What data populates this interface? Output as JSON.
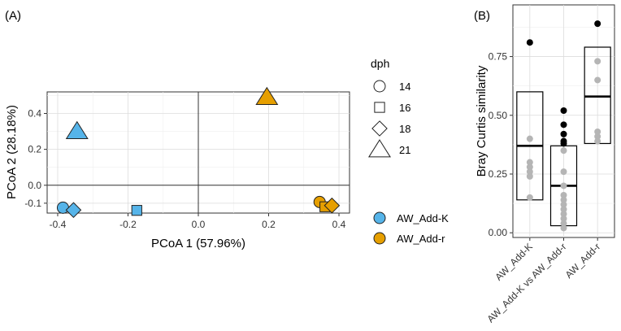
{
  "chart_data": [
    {
      "panel_label": "(A)",
      "type": "scatter",
      "xlabel": "PCoA 1 (57.96%)",
      "ylabel": "PCoA 2 (28.18%)",
      "xlim": [
        -0.43,
        0.43
      ],
      "ylim": [
        -0.155,
        0.52
      ],
      "x_ticks": [
        -0.4,
        -0.2,
        0.0,
        0.2,
        0.4
      ],
      "x_tick_labels": [
        "-0.4",
        "-0.2",
        "0.0",
        "0.2",
        "0.4"
      ],
      "y_ticks": [
        -0.1,
        0.0,
        0.2,
        0.4
      ],
      "y_tick_labels": [
        "-0.1",
        "0.0",
        "0.2",
        "0.4"
      ],
      "grid": true,
      "zero_lines": true,
      "shape_legend": {
        "title": "dph",
        "entries": [
          {
            "label": "14",
            "shape": "circle"
          },
          {
            "label": "16",
            "shape": "square"
          },
          {
            "label": "18",
            "shape": "diamond"
          },
          {
            "label": "21",
            "shape": "triangle"
          }
        ]
      },
      "color_legend": {
        "entries": [
          {
            "label": "AW_Add-K",
            "color": "#56B4E9"
          },
          {
            "label": "AW_Add-r",
            "color": "#E69F00"
          }
        ]
      },
      "points": [
        {
          "group": "AW_Add-K",
          "dph": "14",
          "x": -0.385,
          "y": -0.125
        },
        {
          "group": "AW_Add-K",
          "dph": "16",
          "x": -0.175,
          "y": -0.14
        },
        {
          "group": "AW_Add-K",
          "dph": "18",
          "x": -0.355,
          "y": -0.138
        },
        {
          "group": "AW_Add-K",
          "dph": "21",
          "x": -0.345,
          "y": 0.3
        },
        {
          "group": "AW_Add-r",
          "dph": "14",
          "x": 0.345,
          "y": -0.093
        },
        {
          "group": "AW_Add-r",
          "dph": "16",
          "x": 0.36,
          "y": -0.12
        },
        {
          "group": "AW_Add-r",
          "dph": "18",
          "x": 0.38,
          "y": -0.113
        },
        {
          "group": "AW_Add-r",
          "dph": "21",
          "x": 0.195,
          "y": 0.49
        }
      ]
    },
    {
      "panel_label": "(B)",
      "type": "box",
      "ylabel": "Bray Curtis similarity",
      "ylim": [
        -0.02,
        0.97
      ],
      "y_ticks": [
        0.0,
        0.25,
        0.5,
        0.75
      ],
      "y_tick_labels": [
        "0.00",
        "0.25",
        "0.50",
        "0.75"
      ],
      "grid": true,
      "categories": [
        "AW_Add-K",
        "AW_Add-K vs AW_Add-r",
        "AW_Add-r"
      ],
      "boxes": [
        {
          "category": "AW_Add-K",
          "lower": 0.14,
          "median": 0.37,
          "upper": 0.6
        },
        {
          "category": "AW_Add-K vs AW_Add-r",
          "lower": 0.03,
          "median": 0.2,
          "upper": 0.37
        },
        {
          "category": "AW_Add-r",
          "lower": 0.38,
          "median": 0.58,
          "upper": 0.79
        }
      ],
      "points": [
        {
          "category": "AW_Add-K",
          "values": [
            0.4,
            0.3,
            0.28,
            0.26,
            0.24,
            0.15
          ],
          "highlight": [
            0.81
          ]
        },
        {
          "category": "AW_Add-K vs AW_Add-r",
          "values": [
            0.35,
            0.26,
            0.2,
            0.16,
            0.14,
            0.12,
            0.1,
            0.08,
            0.06,
            0.04,
            0.02
          ],
          "highlight": [
            0.52,
            0.46,
            0.42,
            0.39,
            0.38
          ]
        },
        {
          "category": "AW_Add-r",
          "values": [
            0.73,
            0.65,
            0.43,
            0.41,
            0.39
          ],
          "highlight": [
            0.89
          ]
        }
      ]
    }
  ]
}
